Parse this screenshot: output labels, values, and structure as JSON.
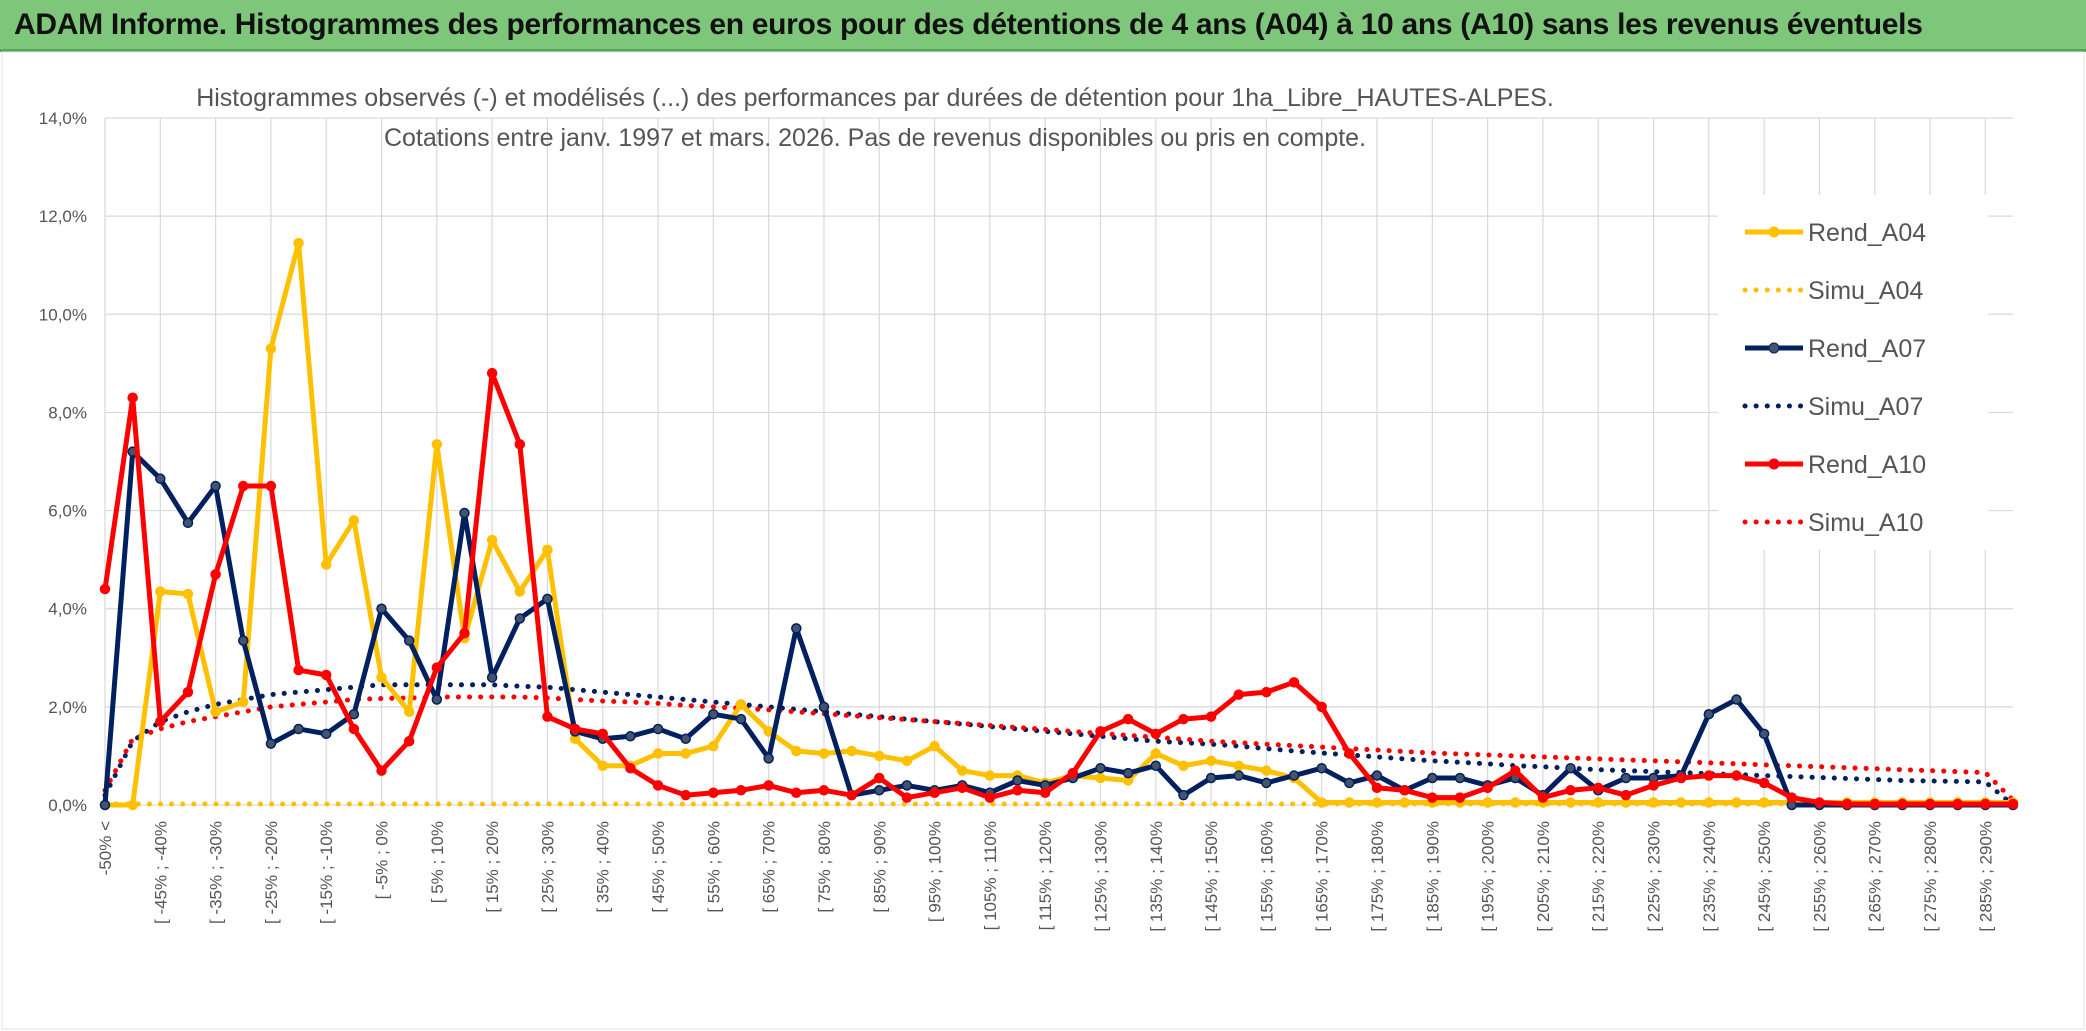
{
  "banner": {
    "title": "ADAM Informe. Histogrammes des performances en euros pour des détentions de 4 ans (A04) à 10 ans (A10) sans les revenus éventuels",
    "color": "#7dc67a"
  },
  "chart_data": {
    "type": "line",
    "title_line1": "Histogrammes observés (-) et modélisés (...) des performances par durées de détention pour 1ha_Libre_HAUTES-ALPES.",
    "title_line2": "Cotations entre janv. 1997 et mars. 2026. Pas de revenus disponibles ou pris en compte.",
    "ylim": [
      0,
      14
    ],
    "yticks": [
      "0,0%",
      "2,0%",
      "4,0%",
      "6,0%",
      "8,0%",
      "10,0%",
      "12,0%",
      "14,0%"
    ],
    "grid": true,
    "legend_position": "right",
    "x_labels": [
      "-50% <",
      "[ -45% ; -40%",
      "[ -35% ; -30%",
      "[ -25% ; -20%",
      "[ -15% ; -10%",
      "[ -5% ; 0%",
      "[ 5% ; 10%",
      "[ 15% ; 20%",
      "[ 25% ; 30%",
      "[ 35% ; 40%",
      "[ 45% ; 50%",
      "[ 55% ; 60%",
      "[ 65% ; 70%",
      "[ 75% ; 80%",
      "[ 85% ; 90%",
      "[ 95% ; 100%",
      "[ 105% ; 110%",
      "[ 115% ; 120%",
      "[ 125% ; 130%",
      "[ 135% ; 140%",
      "[ 145% ; 150%",
      "[ 155% ; 160%",
      "[ 165% ; 170%",
      "[ 175% ; 180%",
      "[ 185% ; 190%",
      "[ 195% ; 200%",
      "[ 205% ; 210%",
      "[ 215% ; 220%",
      "[ 225% ; 230%",
      "[ 235% ; 240%",
      "[ 245% ; 250%",
      "[ 255% ; 260%",
      "[ 265% ; 270%",
      "[ 275% ; 280%",
      "[ 285% ; 290%"
    ],
    "n_points": 70,
    "series": [
      {
        "name": "Rend_A04",
        "color": "#ffc000",
        "style": "solid",
        "values": [
          0,
          0,
          4.35,
          4.3,
          1.9,
          2.1,
          9.3,
          11.45,
          4.9,
          5.8,
          2.6,
          1.9,
          7.35,
          3.4,
          5.4,
          4.35,
          5.2,
          1.35,
          0.8,
          0.8,
          1.05,
          1.05,
          1.2,
          2.05,
          1.5,
          1.1,
          1.05,
          1.1,
          1.0,
          0.9,
          1.2,
          0.7,
          0.6,
          0.6,
          0.45,
          0.6,
          0.55,
          0.5,
          1.05,
          0.8,
          0.9,
          0.8,
          0.7,
          0.55,
          0.05,
          0.05,
          0.05,
          0.05,
          0.05,
          0.05,
          0.05,
          0.05,
          0.05,
          0.05,
          0.05,
          0.05,
          0.05,
          0.05,
          0.05,
          0.05,
          0.05,
          0.05,
          0.05,
          0.05,
          0.05,
          0.05,
          0.05,
          0.05,
          0.05,
          0.05
        ]
      },
      {
        "name": "Simu_A04",
        "color": "#ffc000",
        "style": "dotted",
        "values": [
          0.02,
          0.02,
          0.02,
          0.02,
          0.02,
          0.02,
          0.02,
          0.02,
          0.02,
          0.02,
          0.02,
          0.02,
          0.02,
          0.02,
          0.02,
          0.02,
          0.02,
          0.02,
          0.02,
          0.02,
          0.02,
          0.02,
          0.02,
          0.02,
          0.02,
          0.02,
          0.02,
          0.02,
          0.02,
          0.02,
          0.02,
          0.02,
          0.02,
          0.02,
          0.02,
          0.02,
          0.02,
          0.02,
          0.02,
          0.02,
          0.02,
          0.02,
          0.02,
          0.02,
          0.02,
          0.02,
          0.02,
          0.02,
          0.02,
          0.02,
          0.02,
          0.02,
          0.02,
          0.02,
          0.02,
          0.02,
          0.02,
          0.02,
          0.02,
          0.02,
          0.02,
          0.02,
          0.02,
          0.02,
          0.02,
          0.02,
          0.02,
          0.02,
          0.02,
          0.02
        ]
      },
      {
        "name": "Rend_A07",
        "color": "#002060",
        "style": "solid",
        "values": [
          0,
          7.2,
          6.65,
          5.75,
          6.5,
          3.35,
          1.25,
          1.55,
          1.45,
          1.85,
          4.0,
          3.35,
          2.15,
          5.95,
          2.6,
          3.8,
          4.2,
          1.5,
          1.35,
          1.4,
          1.55,
          1.35,
          1.85,
          1.75,
          0.95,
          3.6,
          2.0,
          0.2,
          0.3,
          0.4,
          0.3,
          0.4,
          0.25,
          0.5,
          0.4,
          0.55,
          0.75,
          0.65,
          0.8,
          0.2,
          0.55,
          0.6,
          0.45,
          0.6,
          0.75,
          0.45,
          0.6,
          0.3,
          0.55,
          0.55,
          0.4,
          0.55,
          0.2,
          0.75,
          0.3,
          0.55,
          0.55,
          0.6,
          1.85,
          2.15,
          1.45,
          0.0,
          0.0,
          0.0,
          0.0,
          0.0,
          0.0,
          0.0,
          0.0,
          0.0
        ]
      },
      {
        "name": "Simu_A07",
        "color": "#002060",
        "style": "dotted",
        "values": [
          0.2,
          1.3,
          1.7,
          1.9,
          2.05,
          2.15,
          2.25,
          2.3,
          2.35,
          2.4,
          2.45,
          2.45,
          2.45,
          2.45,
          2.45,
          2.42,
          2.4,
          2.35,
          2.3,
          2.25,
          2.2,
          2.15,
          2.1,
          2.05,
          2.0,
          1.95,
          1.9,
          1.85,
          1.8,
          1.75,
          1.7,
          1.65,
          1.6,
          1.55,
          1.5,
          1.45,
          1.4,
          1.35,
          1.3,
          1.27,
          1.24,
          1.2,
          1.15,
          1.1,
          1.06,
          1.02,
          0.98,
          0.94,
          0.9,
          0.87,
          0.84,
          0.8,
          0.78,
          0.75,
          0.72,
          0.7,
          0.68,
          0.66,
          0.64,
          0.62,
          0.6,
          0.58,
          0.56,
          0.54,
          0.52,
          0.5,
          0.49,
          0.48,
          0.47,
          0.0
        ]
      },
      {
        "name": "Rend_A10",
        "color": "#ff0000",
        "style": "solid",
        "values": [
          4.4,
          8.3,
          1.7,
          2.3,
          4.7,
          6.5,
          6.5,
          2.75,
          2.65,
          1.55,
          0.7,
          1.3,
          2.8,
          3.5,
          8.8,
          7.35,
          1.8,
          1.55,
          1.45,
          0.75,
          0.4,
          0.2,
          0.25,
          0.3,
          0.4,
          0.25,
          0.3,
          0.2,
          0.55,
          0.15,
          0.25,
          0.35,
          0.15,
          0.3,
          0.25,
          0.65,
          1.5,
          1.75,
          1.45,
          1.75,
          1.8,
          2.25,
          2.3,
          2.5,
          2.0,
          1.05,
          0.35,
          0.3,
          0.15,
          0.15,
          0.35,
          0.7,
          0.15,
          0.3,
          0.35,
          0.2,
          0.4,
          0.55,
          0.6,
          0.6,
          0.45,
          0.15,
          0.05,
          0.02,
          0.02,
          0.02,
          0.02,
          0.02,
          0.02,
          0.02
        ]
      },
      {
        "name": "Simu_A10",
        "color": "#ff0000",
        "style": "dotted",
        "values": [
          0.3,
          1.35,
          1.55,
          1.7,
          1.8,
          1.9,
          2.0,
          2.05,
          2.1,
          2.15,
          2.17,
          2.18,
          2.2,
          2.2,
          2.2,
          2.2,
          2.18,
          2.15,
          2.12,
          2.1,
          2.07,
          2.03,
          2.0,
          1.97,
          1.94,
          1.9,
          1.86,
          1.82,
          1.78,
          1.74,
          1.7,
          1.66,
          1.62,
          1.58,
          1.54,
          1.5,
          1.46,
          1.42,
          1.38,
          1.34,
          1.3,
          1.27,
          1.24,
          1.21,
          1.18,
          1.15,
          1.12,
          1.09,
          1.06,
          1.04,
          1.02,
          1.0,
          0.98,
          0.96,
          0.94,
          0.92,
          0.9,
          0.88,
          0.86,
          0.84,
          0.82,
          0.8,
          0.78,
          0.76,
          0.74,
          0.72,
          0.7,
          0.68,
          0.66,
          0.1
        ]
      }
    ],
    "legend": [
      "Rend_A04",
      "Simu_A04",
      "Rend_A07",
      "Simu_A07",
      "Rend_A10",
      "Simu_A10"
    ]
  }
}
